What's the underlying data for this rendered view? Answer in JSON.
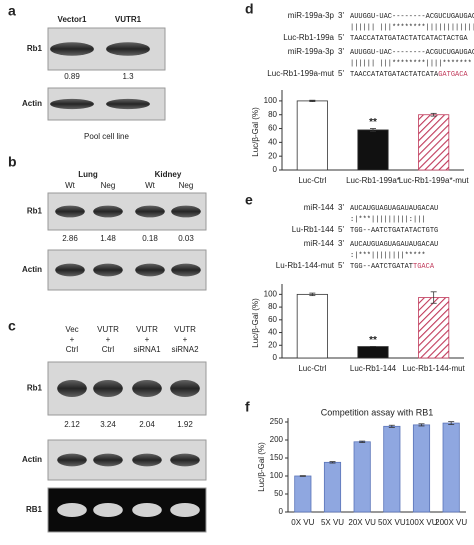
{
  "blots": [
    {
      "label": "a",
      "lanes": [
        [
          "Vector1"
        ],
        [
          "VUTR1"
        ]
      ],
      "rows": [
        {
          "name": "Rb1",
          "values": [
            0.89,
            1.3
          ]
        },
        {
          "name": "Actin"
        }
      ],
      "caption": "Pool cell line"
    },
    {
      "label": "b",
      "groups": [
        "Lung",
        "Kidney"
      ],
      "lanes": [
        [
          "Wt"
        ],
        [
          "Neg"
        ],
        [
          "Wt"
        ],
        [
          "Neg"
        ]
      ],
      "rows": [
        {
          "name": "Rb1",
          "values": [
            2.86,
            1.48,
            0.18,
            0.03
          ]
        },
        {
          "name": "Actin"
        }
      ]
    },
    {
      "label": "c",
      "lanes": [
        [
          "Vec",
          "+",
          "Ctrl"
        ],
        [
          "VUTR",
          "+",
          "Ctrl"
        ],
        [
          "VUTR",
          "+",
          "siRNA1"
        ],
        [
          "VUTR",
          "+",
          "siRNA2"
        ]
      ],
      "rows": [
        {
          "name": "Rb1",
          "values": [
            2.12,
            3.24,
            2.04,
            1.92
          ]
        },
        {
          "name": "Actin"
        },
        {
          "name": "RB1"
        }
      ]
    }
  ],
  "sequences": [
    {
      "lines": [
        {
          "name": "miR-199a-3p",
          "end": "3'",
          "seq": "AUUGGU-UAC--------ACGUCUGAUGACA"
        },
        {
          "seq": "|||||| |||********||||||||||||"
        },
        {
          "name": "Luc-Rb1-199a",
          "end": "5'",
          "seq": "TAACCATATGATACTATCATACTACTGA"
        },
        {
          "name": "miR-199a-3p",
          "end": "3'",
          "seq": "AUUGGU-UAC--------ACGUCUGAUGACA"
        },
        {
          "seq": "|||||| |||********||||*******"
        },
        {
          "name": "Luc-Rb1-199a-mut",
          "end": "5'",
          "seq": "TAACCATATGATACTATCATA",
          "mutated": "GATGACA"
        }
      ]
    },
    {
      "lines": [
        {
          "name": "miR-144",
          "end": "3'",
          "seq": "AUCAUGUAGUAGAUAUGACAU"
        },
        {
          "seq": ":|***|||||||||:|||"
        },
        {
          "name": "Lu-Rb1-144",
          "end": "5'",
          "seq": "TGG--AATCTGATATACTGTG"
        },
        {
          "name": "miR-144",
          "end": "3'",
          "seq": "AUCAUGUAGUAGAUAUGACAU"
        },
        {
          "seq": ":|***||||||||*****"
        },
        {
          "name": "Lu-Rb1-144-mut",
          "end": "5'",
          "seq": "TGG--AATCTGATAT",
          "mutated": "TGACA"
        }
      ]
    }
  ],
  "chart_data": [
    {
      "type": "bar",
      "label": "d",
      "ylabel": "Luc/β-Gal (%)",
      "categories": [
        "Luc-Ctrl",
        "Luc-Rb1-199a*",
        "Luc-Rb1-199a*-mut"
      ],
      "values": [
        100,
        58,
        80
      ],
      "errors": [
        1,
        2,
        2
      ],
      "colors": [
        "#ffffff",
        "#111111",
        "#c0395a"
      ],
      "hatched": [
        false,
        false,
        true
      ],
      "annotations": [
        null,
        "**",
        null
      ],
      "ylim": [
        0,
        110
      ],
      "yticks": [
        0,
        20,
        40,
        60,
        80,
        100
      ]
    },
    {
      "type": "bar",
      "label": "e",
      "ylabel": "Luc/β-Gal (%)",
      "categories": [
        "Luc-Ctrl",
        "Luc-Rb1-144",
        "Luc-Rb1-144-mut"
      ],
      "values": [
        100,
        18,
        95
      ],
      "errors": [
        2,
        0,
        9
      ],
      "colors": [
        "#ffffff",
        "#111111",
        "#c0395a"
      ],
      "hatched": [
        false,
        false,
        true
      ],
      "annotations": [
        null,
        "**",
        null
      ],
      "ylim": [
        0,
        110
      ],
      "yticks": [
        0,
        20,
        40,
        60,
        80,
        100
      ]
    },
    {
      "type": "bar",
      "label": "f",
      "title": "Competition assay with RB1",
      "ylabel": "Luc/β-Gal (%)",
      "categories": [
        "0X VU",
        "5X VU",
        "20X VU",
        "50X VU",
        "100X VU",
        "200X VU"
      ],
      "values": [
        100,
        138,
        195,
        238,
        242,
        247
      ],
      "errors": [
        1,
        2,
        2,
        3,
        3,
        4
      ],
      "colors": [
        "#8fa7e0",
        "#8fa7e0",
        "#8fa7e0",
        "#8fa7e0",
        "#8fa7e0",
        "#8fa7e0"
      ],
      "hatched": [
        false,
        false,
        false,
        false,
        false,
        false
      ],
      "ylim": [
        0,
        250
      ],
      "yticks": [
        0,
        50,
        100,
        150,
        200,
        250
      ]
    }
  ]
}
